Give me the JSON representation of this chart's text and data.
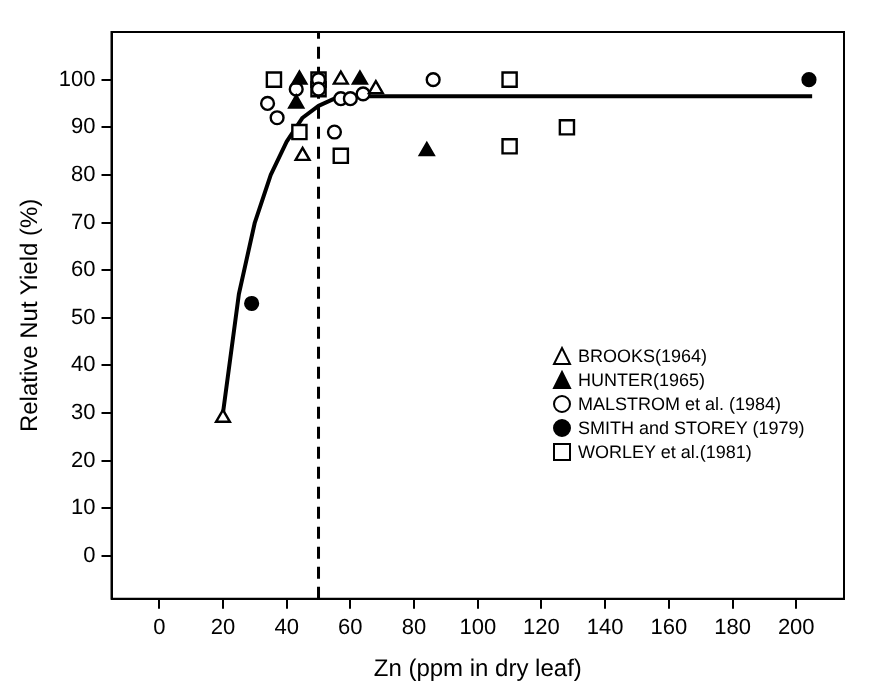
{
  "chart_data": {
    "type": "scatter",
    "xlabel": "Zn (ppm in dry leaf)",
    "ylabel": "Relative Nut Yield (%)",
    "xlim": [
      -15,
      215
    ],
    "xticks": [
      0,
      20,
      40,
      60,
      80,
      100,
      120,
      140,
      160,
      180,
      200
    ],
    "ylim": [
      -9,
      110
    ],
    "yticks": [
      0,
      10,
      20,
      30,
      40,
      50,
      60,
      70,
      80,
      90,
      100
    ],
    "grid": false,
    "legend": "bottom right",
    "series": [
      {
        "name": "BROOKS(1964)",
        "color": "#ffffff",
        "marker": "triangle",
        "x": [
          20,
          45,
          57,
          68
        ],
        "values": [
          29,
          84,
          100,
          98
        ]
      },
      {
        "name": "HUNTER(1965)",
        "color": "#000000",
        "marker": "triangle",
        "x": [
          43,
          44,
          63,
          84
        ],
        "values": [
          95,
          100,
          100,
          85
        ]
      },
      {
        "name": "MALSTROM et al. (1984)",
        "color": "#ffffff",
        "marker": "circle",
        "x": [
          34,
          37,
          43,
          50,
          50,
          55,
          57,
          60,
          64,
          86
        ],
        "values": [
          95,
          92,
          98,
          100,
          98,
          89,
          96,
          96,
          97,
          100
        ]
      },
      {
        "name": "SMITH and STOREY (1979)",
        "color": "#000000",
        "marker": "circle",
        "x": [
          29,
          204
        ],
        "values": [
          53,
          100
        ]
      },
      {
        "name": "WORLEY et al.(1981)",
        "color": "#ffffff",
        "marker": "square",
        "x": [
          36,
          44,
          50,
          50,
          57,
          110,
          110,
          128
        ],
        "values": [
          100,
          89,
          100,
          98,
          84,
          100,
          86,
          90
        ]
      },
      {
        "type": "line",
        "color": "#000000",
        "marker": "none",
        "line_style": "solid",
        "x": [
          20,
          25,
          30,
          35,
          40,
          45,
          50,
          55,
          60,
          80,
          205
        ],
        "values": [
          30,
          55,
          70,
          80,
          87,
          92,
          94.5,
          96,
          96.5,
          96.5,
          96.5
        ]
      }
    ],
    "ref_lines": [
      {
        "axis": "x",
        "value": 50,
        "color": "#000000",
        "line_style": "dashed"
      }
    ]
  }
}
